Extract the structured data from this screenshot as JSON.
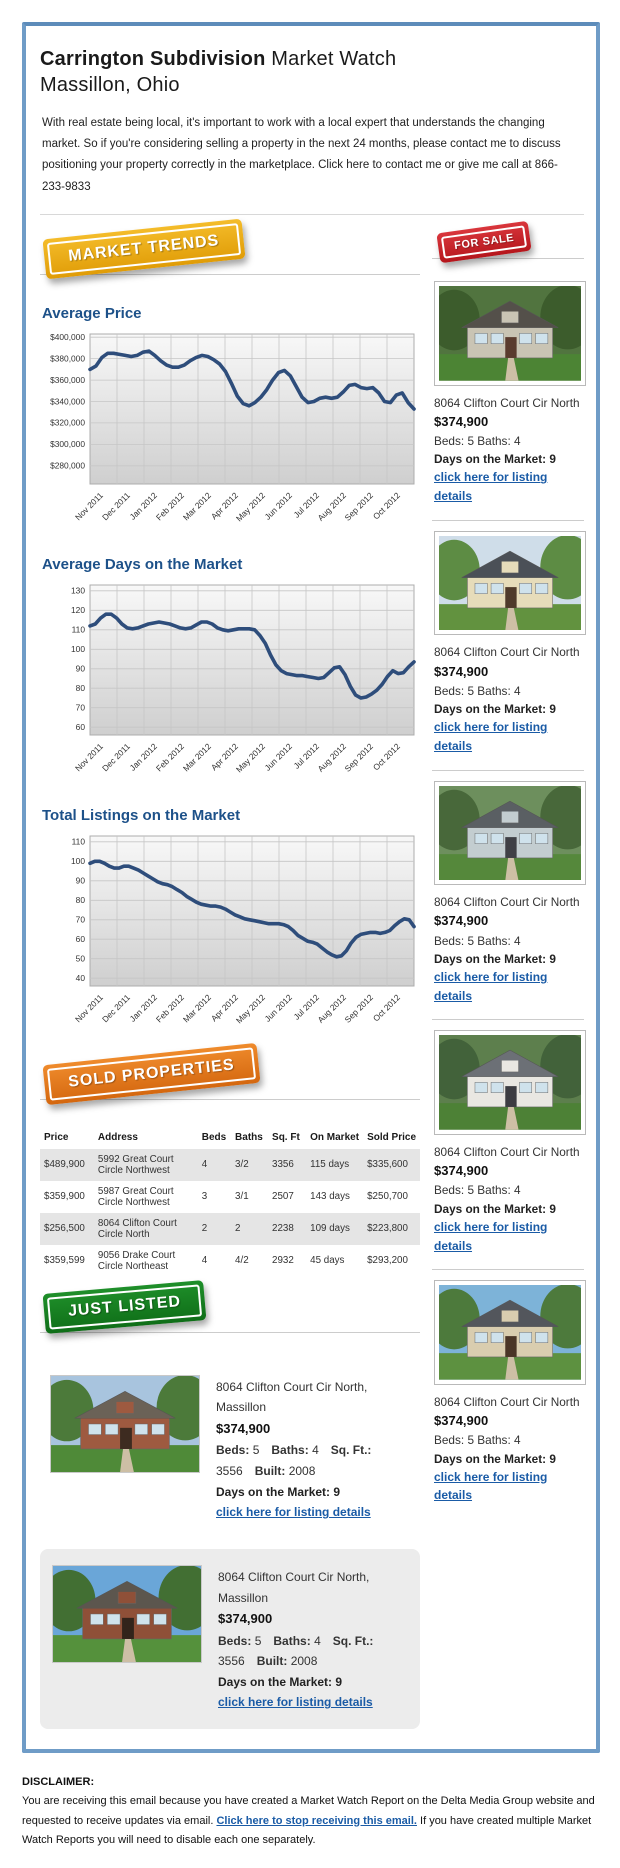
{
  "colors": {
    "frame_blue": "#6f9cc7",
    "heading_blue": "#1d5189",
    "link_blue": "#1a5ba6",
    "chart_line_navy": "#2e4d7b",
    "badge_gold": "#e8a70f",
    "badge_red": "#c32026",
    "badge_orange": "#e0751a",
    "badge_green": "#187d20"
  },
  "header": {
    "title_bold": "Carrington Subdivision",
    "title_regular": " Market Watch",
    "city": "Massillon, Ohio",
    "intro": "With real estate being local, it's important to work with a local expert that understands the changing market. So if you're considering selling a property in the next 24 months, please contact me to discuss positioning your property correctly in the marketplace. Click here to contact me or give me call at 866-233-9833"
  },
  "badges": {
    "market_trends": "MARKET TRENDS",
    "for_sale": "FOR SALE",
    "sold_properties": "SOLD PROPERTIES",
    "just_listed": "JUST LISTED"
  },
  "chart_data": [
    {
      "type": "line",
      "title": "Average Price",
      "x_labels": [
        "Nov 2011",
        "Dec 2011",
        "Jan 2012",
        "Feb 2012",
        "Mar 2012",
        "Apr 2012",
        "May 2012",
        "Jun 2012",
        "Jul 2012",
        "Aug 2012",
        "Sep 2012",
        "Oct 2012"
      ],
      "values": [
        370000,
        373000,
        381000,
        385000,
        385000,
        384000,
        383000,
        382000,
        383000,
        386000,
        387000,
        383000,
        378000,
        374000,
        372000,
        372000,
        374000,
        378000,
        381000,
        383000,
        382000,
        379000,
        375000,
        368000,
        357000,
        345000,
        338000,
        336000,
        339000,
        344000,
        351000,
        360000,
        367000,
        369000,
        364000,
        354000,
        344000,
        339000,
        340000,
        343000,
        344000,
        343000,
        344000,
        349000,
        355000,
        356000,
        353000,
        352000,
        353000,
        348000,
        340000,
        339000,
        346000,
        348000,
        339000,
        333000
      ],
      "y_ticks": [
        400000,
        380000,
        360000,
        340000,
        320000,
        300000,
        280000
      ],
      "ylim": [
        263000,
        403000
      ],
      "tick_format": "currency",
      "grid": true,
      "line_color": "#2e4d7b"
    },
    {
      "type": "line",
      "title": "Average Days on the Market",
      "x_labels": [
        "Nov 2011",
        "Dec 2011",
        "Jan 2012",
        "Feb 2012",
        "Mar 2012",
        "Apr 2012",
        "May 2012",
        "Jun 2012",
        "Jul 2012",
        "Aug 2012",
        "Sep 2012",
        "Oct 2012"
      ],
      "values": [
        112,
        113,
        116,
        118,
        118,
        116,
        113,
        111,
        110.5,
        111,
        112,
        113,
        113.5,
        114,
        113.5,
        113,
        112,
        111,
        110.5,
        111,
        112.5,
        114,
        114,
        113,
        111,
        110,
        109.5,
        110,
        110.5,
        110.5,
        110.5,
        110,
        107,
        103,
        97,
        92,
        89,
        87.5,
        87,
        86.5,
        86.5,
        86,
        85.5,
        85,
        85.5,
        88,
        90.5,
        91,
        87,
        81,
        76.5,
        75,
        75.5,
        77,
        79,
        82,
        86,
        89,
        87.5,
        88,
        91,
        93.5
      ],
      "y_ticks": [
        130,
        120,
        110,
        100,
        90,
        80,
        70,
        60
      ],
      "ylim": [
        56,
        133
      ],
      "tick_format": "number",
      "grid": true,
      "line_color": "#2e4d7b"
    },
    {
      "type": "line",
      "title": "Total Listings on the Market",
      "x_labels": [
        "Nov 2011",
        "Dec 2011",
        "Jan 2012",
        "Feb 2012",
        "Mar 2012",
        "Apr 2012",
        "May 2012",
        "Jun 2012",
        "Jul 2012",
        "Aug 2012",
        "Sep 2012",
        "Oct 2012"
      ],
      "values": [
        99,
        100,
        100,
        99,
        97.5,
        96.5,
        96.5,
        97.5,
        97.5,
        96.5,
        95.5,
        94,
        92.5,
        91,
        89.5,
        88.5,
        88,
        87,
        85.5,
        84,
        82,
        80.5,
        79,
        78,
        77.5,
        77,
        77,
        76.5,
        75.5,
        74,
        72.5,
        71.5,
        70.5,
        70,
        69.5,
        69,
        68.5,
        68,
        68,
        68,
        67.5,
        66.5,
        64.5,
        62,
        60.5,
        59,
        58.5,
        57.5,
        55.5,
        53.5,
        52,
        51,
        51.5,
        54,
        58,
        61,
        62.5,
        63,
        63.5,
        63.5,
        63,
        63.5,
        64.5,
        67,
        69,
        70.5,
        70,
        66.5
      ],
      "y_ticks": [
        110,
        100,
        90,
        80,
        70,
        60,
        50,
        40
      ],
      "ylim": [
        36,
        113
      ],
      "tick_format": "number",
      "grid": true,
      "line_color": "#2e4d7b"
    }
  ],
  "sold_table": {
    "columns": [
      "Price",
      "Address",
      "Beds",
      "Baths",
      "Sq. Ft",
      "On Market",
      "Sold Price"
    ],
    "rows": [
      [
        "$489,900",
        "5992 Great Court Circle Northwest",
        "4",
        "3/2",
        "3356",
        "115 days",
        "$335,600"
      ],
      [
        "$359,900",
        "5987 Great Court Circle Northwest",
        "3",
        "3/1",
        "2507",
        "143 days",
        "$250,700"
      ],
      [
        "$256,500",
        "8064 Clifton Court Circle North",
        "2",
        "2",
        "2238",
        "109 days",
        "$223,800"
      ],
      [
        "$359,599",
        "9056 Drake Court Circle Northeast",
        "4",
        "4/2",
        "2932",
        "45 days",
        "$293,200"
      ]
    ]
  },
  "sidebar": {
    "listings": [
      {
        "address": "8064 Clifton Court Cir North",
        "price": "$374,900",
        "beds_baths": "Beds: 5 Baths: 4",
        "days": "Days on the Market: 9",
        "link": "click here for listing details"
      },
      {
        "address": "8064 Clifton Court Cir North",
        "price": "$374,900",
        "beds_baths": "Beds: 5 Baths: 4",
        "days": "Days on the Market: 9",
        "link": "click here for listing details"
      },
      {
        "address": "8064 Clifton Court Cir North",
        "price": "$374,900",
        "beds_baths": "Beds: 5 Baths: 4",
        "days": "Days on the Market: 9",
        "link": "click here for listing details"
      },
      {
        "address": "8064 Clifton Court Cir North",
        "price": "$374,900",
        "beds_baths": "Beds: 5 Baths: 4",
        "days": "Days on the Market: 9",
        "link": "click here for listing details"
      },
      {
        "address": "8064 Clifton Court Cir North",
        "price": "$374,900",
        "beds_baths": "Beds: 5 Baths: 4",
        "days": "Days on the Market: 9",
        "link": "click here for listing details"
      }
    ]
  },
  "just_listed_items": [
    {
      "address": "8064 Clifton Court Cir North, Massillon",
      "price": "$374,900",
      "specs": [
        {
          "label": "Beds:",
          "value": "5"
        },
        {
          "label": "Baths:",
          "value": "4"
        },
        {
          "label": "Sq. Ft.:",
          "value": "3556"
        },
        {
          "label": "Built:",
          "value": "2008"
        }
      ],
      "days": "Days on the Market: 9",
      "link": "click here for listing details"
    },
    {
      "address": "8064 Clifton Court Cir North, Massillon",
      "price": "$374,900",
      "specs": [
        {
          "label": "Beds:",
          "value": "5"
        },
        {
          "label": "Baths:",
          "value": "4"
        },
        {
          "label": "Sq. Ft.:",
          "value": "3556"
        },
        {
          "label": "Built:",
          "value": "2008"
        }
      ],
      "days": "Days on the Market: 9",
      "link": "click here for listing details"
    }
  ],
  "disclaimer": {
    "heading": "DISCLAIMER:",
    "text_before": "You are receiving this email because you have created a Market Watch Report on the Delta Media Group website and requested to receive updates via email. ",
    "link": "Click here to stop receiving this email.",
    "text_after": " If you have created multiple Market Watch Reports you will need to disable each one separately."
  }
}
